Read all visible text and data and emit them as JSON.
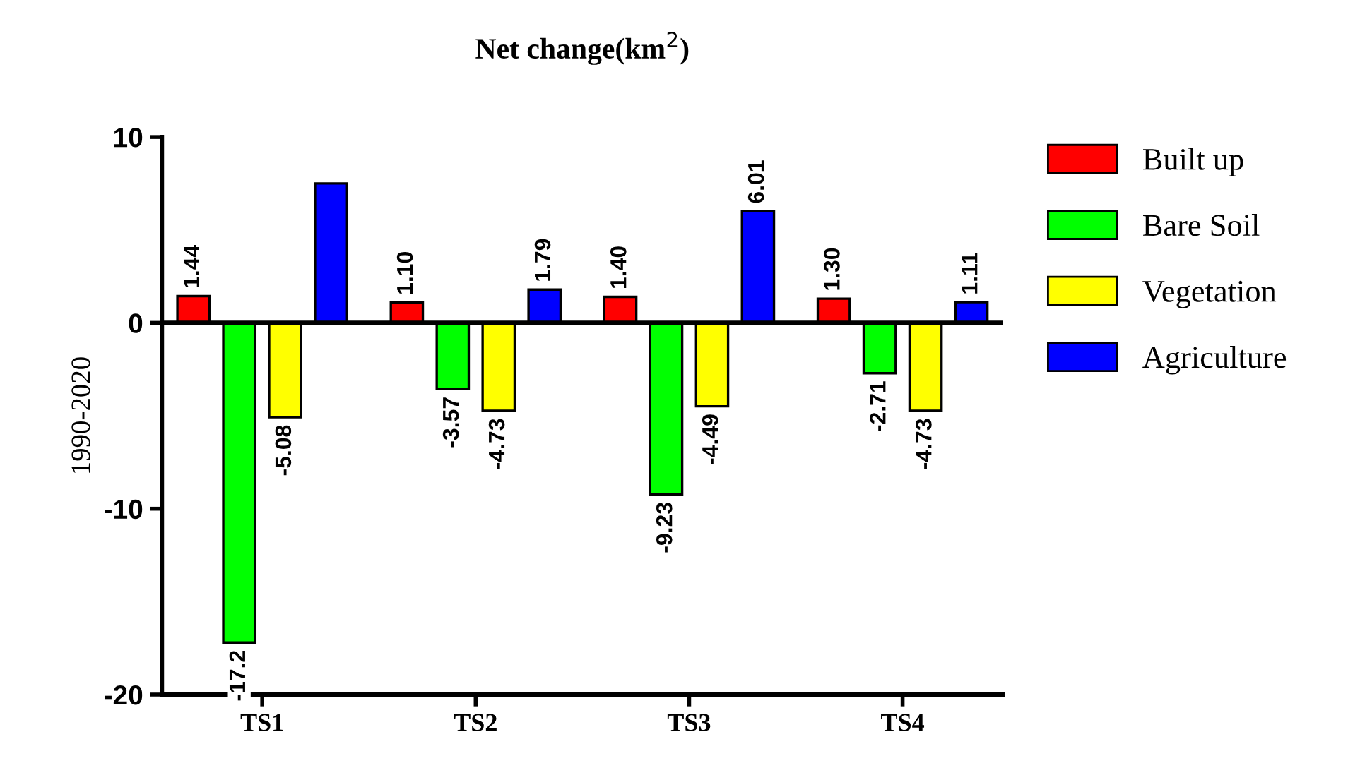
{
  "chart_data": {
    "type": "bar",
    "title": "Net change(km$^{2}$)",
    "ylabel": "1990-2020",
    "categories": [
      "TS1",
      "TS2",
      "TS3",
      "TS4"
    ],
    "series": [
      {
        "name": "Built up",
        "color": "#ff0000",
        "values": [
          1.44,
          1.1,
          1.4,
          1.3
        ],
        "value_labels": [
          "1.44",
          "1.10",
          "1.40",
          "1.30"
        ]
      },
      {
        "name": "Bare Soil",
        "color": "#00ff00",
        "values": [
          -17.2,
          -3.57,
          -9.23,
          -2.71
        ],
        "value_labels": [
          "-17.2",
          "-3.57",
          "-9.23",
          "-2.71"
        ]
      },
      {
        "name": "Vegetation",
        "color": "#ffff00",
        "values": [
          -5.08,
          -4.73,
          -4.49,
          -4.73
        ],
        "value_labels": [
          "-5.08",
          "-4.73",
          "-4.49",
          "-4.73"
        ]
      },
      {
        "name": "Agriculture",
        "color": "#0000ff",
        "values": [
          7.5,
          1.79,
          6.01,
          1.11
        ],
        "value_labels": [
          null,
          "1.79",
          "6.01",
          "1.11"
        ]
      }
    ],
    "ylim": [
      -20,
      10
    ],
    "yticks": [
      -20,
      -10,
      0,
      10
    ],
    "ref_lines": [
      {
        "axis": "y",
        "value": 0,
        "color": "#000000"
      }
    ],
    "legend": "right"
  }
}
